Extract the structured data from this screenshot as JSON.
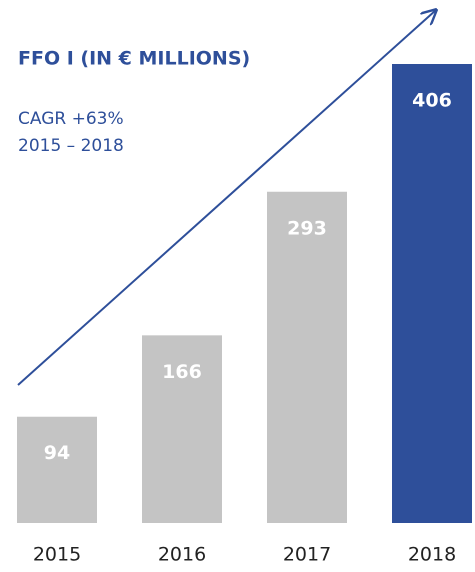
{
  "chart_data": {
    "type": "bar",
    "title": "FFO I (IN € MILLIONS)",
    "annotations": [
      "CAGR +63%",
      "2015 – 2018"
    ],
    "categories": [
      "2015",
      "2016",
      "2017",
      "2018"
    ],
    "values": [
      94,
      166,
      293,
      406
    ],
    "colors": [
      "#c4c4c4",
      "#c4c4c4",
      "#c4c4c4",
      "#2e4f9a"
    ]
  }
}
